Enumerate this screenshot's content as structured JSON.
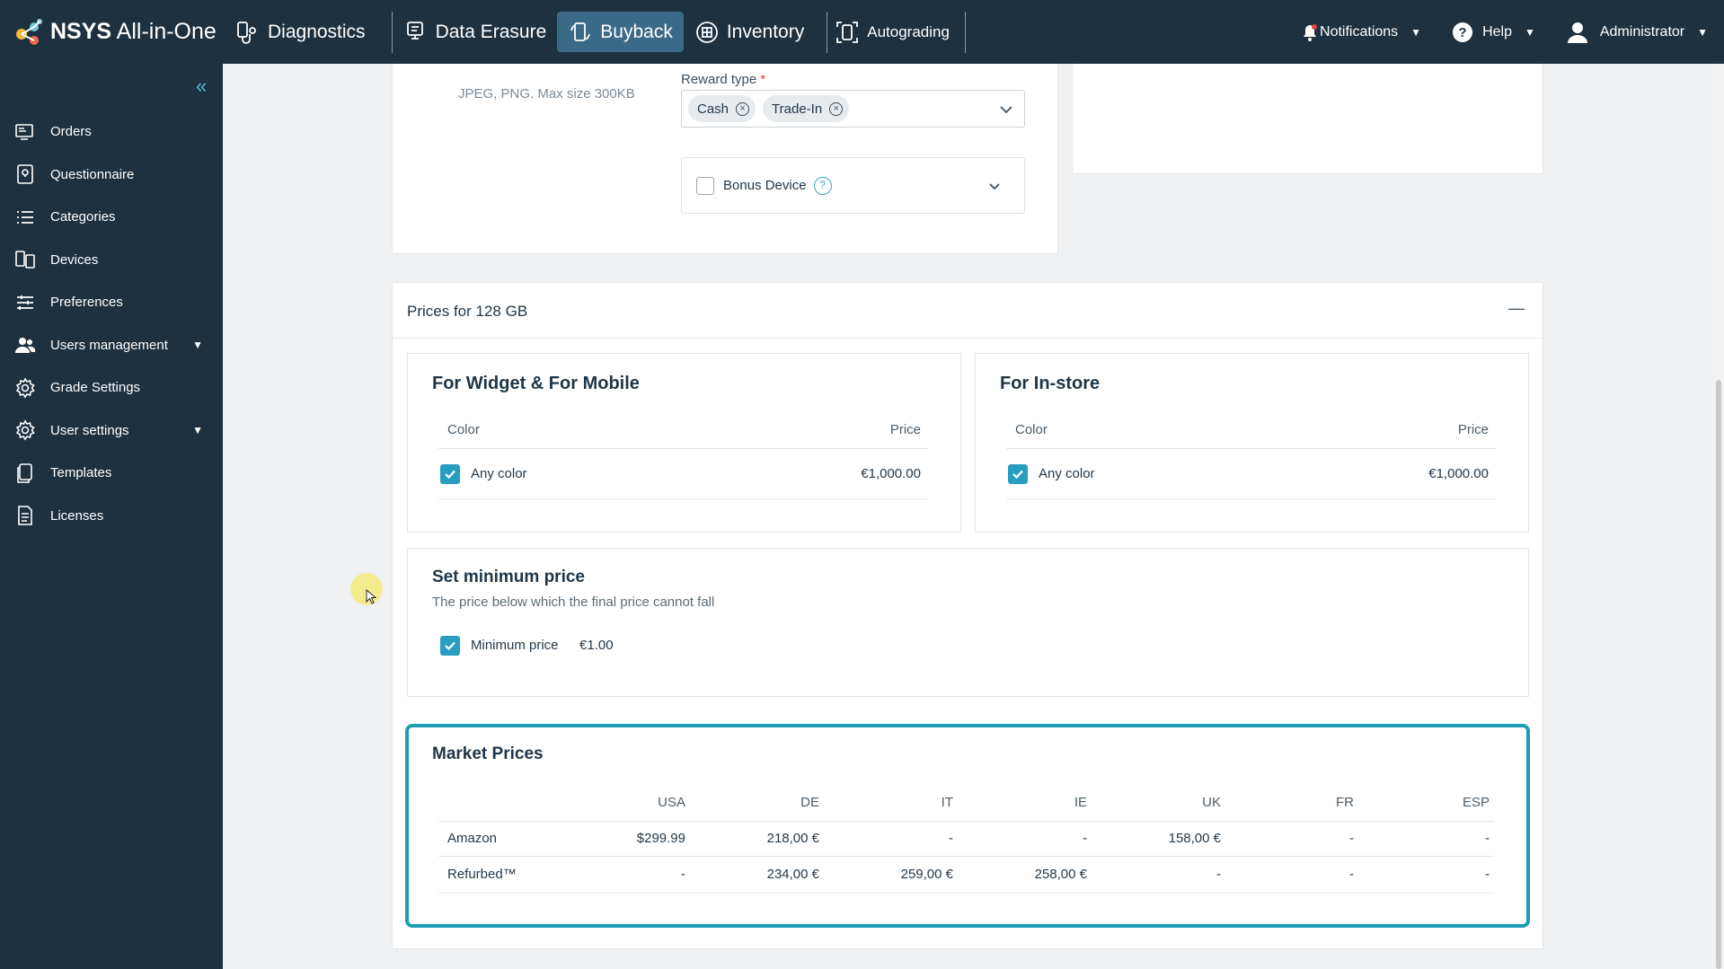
{
  "brand": {
    "name_bold": "NSYS",
    "name_rest": " All-in-One"
  },
  "topnav": [
    {
      "label": "Diagnostics",
      "icon": "stethoscope-icon"
    },
    {
      "label": "Data Erasure",
      "icon": "erasure-icon"
    },
    {
      "label": "Buyback",
      "icon": "buyback-icon",
      "active": true
    },
    {
      "label": "Inventory",
      "icon": "inventory-icon"
    },
    {
      "label": "Autograding",
      "icon": "autograding-icon"
    }
  ],
  "topright": {
    "notifications": "Notifications",
    "help": "Help",
    "user": "Administrator"
  },
  "sidebar": {
    "items": [
      {
        "label": "Orders",
        "icon": "orders-icon"
      },
      {
        "label": "Questionnaire",
        "icon": "questionnaire-icon"
      },
      {
        "label": "Categories",
        "icon": "list-icon"
      },
      {
        "label": "Devices",
        "icon": "devices-icon"
      },
      {
        "label": "Preferences",
        "icon": "sliders-icon"
      },
      {
        "label": "Users management",
        "icon": "users-icon",
        "expandable": true
      },
      {
        "label": "Grade Settings",
        "icon": "gear-icon"
      },
      {
        "label": "User settings",
        "icon": "user-gear-icon",
        "expandable": true
      },
      {
        "label": "Templates",
        "icon": "templates-icon"
      },
      {
        "label": "Licenses",
        "icon": "document-icon"
      }
    ]
  },
  "upload": {
    "hint": "JPEG, PNG. Max size 300KB"
  },
  "reward": {
    "label": "Reward type",
    "required_mark": "*",
    "chips": [
      "Cash",
      "Trade-In"
    ]
  },
  "bonus": {
    "label": "Bonus Device",
    "help": "?"
  },
  "prices": {
    "title": "Prices for 128 GB",
    "collapse_symbol": "—",
    "widget": {
      "title": "For Widget & For Mobile",
      "col_color": "Color",
      "col_price": "Price",
      "row_color": "Any color",
      "row_price": "€1,000.00"
    },
    "instore": {
      "title": "For In-store",
      "col_color": "Color",
      "col_price": "Price",
      "row_color": "Any color",
      "row_price": "€1,000.00"
    },
    "minimum": {
      "title": "Set minimum price",
      "subtitle": "The price below which the final price cannot fall",
      "label": "Minimum price",
      "value": "€1.00"
    }
  },
  "market": {
    "title": "Market Prices",
    "columns": [
      "USA",
      "DE",
      "IT",
      "IE",
      "UK",
      "FR",
      "ESP"
    ],
    "rows": [
      {
        "source": "Amazon",
        "values": [
          "$299.99",
          "218,00 €",
          "-",
          "-",
          "158,00 €",
          "-",
          "-"
        ]
      },
      {
        "source": "Refurbed™",
        "values": [
          "-",
          "234,00 €",
          "259,00 €",
          "258,00 €",
          "-",
          "-",
          "-"
        ]
      }
    ]
  }
}
